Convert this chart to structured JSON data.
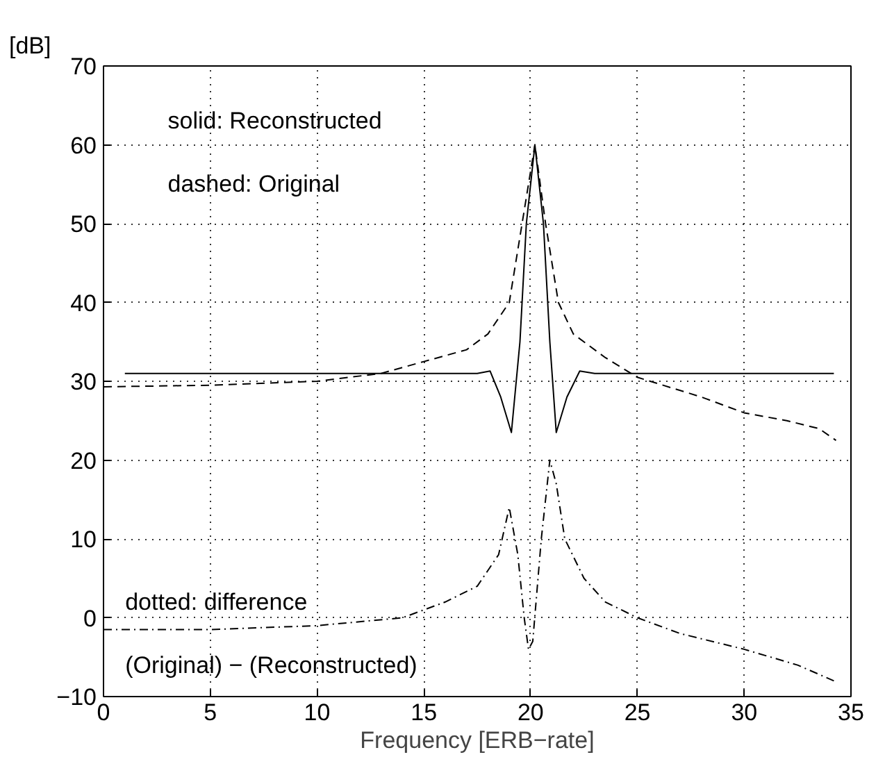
{
  "chart_data": {
    "type": "line",
    "xlabel": "Frequency [ERB−rate]",
    "ylabel": "[dB]",
    "xlim": [
      0,
      35
    ],
    "ylim": [
      -10,
      70
    ],
    "xticks": [
      0,
      5,
      10,
      15,
      20,
      25,
      30,
      35
    ],
    "yticks": [
      -10,
      0,
      10,
      20,
      30,
      40,
      50,
      60,
      70
    ],
    "grid": true,
    "series": [
      {
        "color": "#000000",
        "line_style": "solid",
        "x": [
          1,
          5,
          10,
          15,
          17.5,
          18.1,
          18.6,
          19.1,
          19.5,
          19.8,
          20.2,
          20.6,
          20.9,
          21.2,
          21.7,
          22.3,
          23,
          28,
          34.2
        ],
        "values": [
          31,
          31,
          31,
          31,
          31,
          31.3,
          28,
          23.5,
          35,
          50,
          60,
          50,
          35,
          23.5,
          28,
          31.3,
          31,
          31,
          31
        ]
      },
      {
        "color": "#000000",
        "line_style": "dashed",
        "x": [
          0,
          5,
          10,
          13,
          15,
          17,
          18,
          19,
          19.6,
          20.2,
          20.7,
          21.3,
          22,
          23.5,
          25,
          28,
          30,
          32,
          33.5,
          34.3
        ],
        "values": [
          29.3,
          29.5,
          30,
          31,
          32.5,
          34,
          36,
          40,
          50,
          60,
          50,
          40,
          36,
          33,
          30.5,
          28,
          26,
          25,
          24,
          22.5
        ]
      },
      {
        "color": "#000000",
        "line_style": "dotted",
        "x": [
          0,
          5,
          10,
          14,
          16,
          17.5,
          18.5,
          19,
          19.4,
          19.7,
          19.9,
          20.1,
          20.5,
          20.9,
          21.2,
          21.6,
          22.5,
          23.5,
          25,
          27,
          30,
          32.5,
          34.2
        ],
        "values": [
          -1.5,
          -1.5,
          -1,
          0,
          2,
          4,
          8,
          14,
          8,
          0,
          -4,
          -3,
          10,
          20,
          17,
          10,
          5,
          2,
          0,
          -2,
          -4,
          -6,
          -8
        ]
      }
    ],
    "annotations": [
      "solid: Reconstructed",
      "dashed: Original",
      "dotted: difference",
      "(Original) − (Reconstructed)"
    ]
  }
}
